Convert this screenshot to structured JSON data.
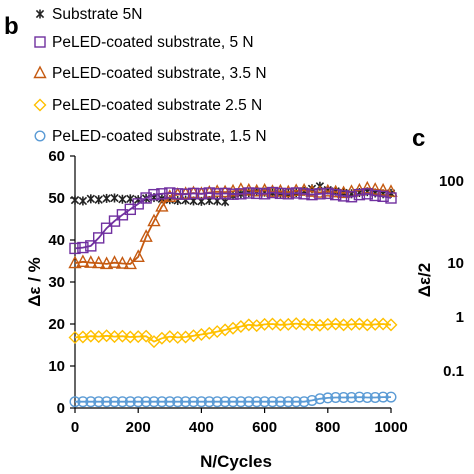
{
  "panel_b_label": "b",
  "panel_c_label": "c",
  "panel_c": {
    "ylabel": "Δε/2",
    "yticks": [
      "100",
      "10",
      "1",
      "0.1"
    ]
  },
  "chart_data": {
    "type": "scatter",
    "xlabel": "N/Cycles",
    "ylabel": "Δε / %",
    "xlim": [
      0,
      1000
    ],
    "ylim": [
      0,
      60
    ],
    "xticks": [
      0,
      200,
      400,
      600,
      800,
      1000
    ],
    "yticks": [
      0,
      10,
      20,
      30,
      40,
      50,
      60
    ],
    "grid": false,
    "legend_position": "top-left",
    "series": [
      {
        "name": "Substrate 5N",
        "marker": "asterisk",
        "color": "#222222",
        "x": [
          0,
          25,
          50,
          75,
          100,
          125,
          150,
          175,
          200,
          225,
          250,
          275,
          300,
          325,
          350,
          375,
          400,
          425,
          450,
          475,
          500,
          525,
          550,
          575,
          600,
          625,
          650,
          675,
          700,
          725,
          750,
          775,
          800,
          825,
          850,
          875,
          900,
          925,
          950,
          975,
          1000
        ],
        "y": [
          49.5,
          49.3,
          49.8,
          49.6,
          49.9,
          50.0,
          49.7,
          49.8,
          49.6,
          49.9,
          50.1,
          49.8,
          49.6,
          49.4,
          49.5,
          49.3,
          49.2,
          49.4,
          49.3,
          49.1,
          50.6,
          51.0,
          51.3,
          51.5,
          51.4,
          51.2,
          51.1,
          51.0,
          51.3,
          51.6,
          52.2,
          52.8,
          51.9,
          51.6,
          51.2,
          51.0,
          51.3,
          51.5,
          51.2,
          51.0,
          51.1
        ]
      },
      {
        "name": "PeLED-coated substrate, 5 N",
        "marker": "square",
        "color": "#7030a0",
        "x": [
          0,
          25,
          50,
          75,
          100,
          125,
          150,
          175,
          200,
          225,
          250,
          275,
          300,
          325,
          350,
          375,
          400,
          425,
          450,
          475,
          500,
          525,
          550,
          575,
          600,
          625,
          650,
          675,
          700,
          725,
          750,
          775,
          800,
          825,
          850,
          875,
          900,
          925,
          950,
          975,
          1000
        ],
        "y": [
          38.0,
          38.2,
          38.6,
          40.5,
          42.8,
          44.5,
          46.0,
          47.3,
          48.6,
          50.0,
          50.8,
          51.0,
          51.2,
          51.0,
          50.9,
          51.1,
          51.0,
          51.2,
          51.0,
          51.1,
          50.9,
          51.0,
          51.2,
          51.1,
          51.0,
          51.3,
          51.1,
          51.0,
          51.2,
          51.0,
          50.8,
          51.0,
          51.1,
          50.8,
          50.5,
          50.3,
          50.8,
          51.0,
          50.6,
          50.4,
          50.0
        ]
      },
      {
        "name": "PeLED-coated substrate, 3.5 N",
        "marker": "triangle",
        "color": "#c55a11",
        "x": [
          0,
          25,
          50,
          75,
          100,
          125,
          150,
          175,
          200,
          225,
          250,
          275,
          300,
          325,
          350,
          375,
          400,
          425,
          450,
          475,
          500,
          525,
          550,
          575,
          600,
          625,
          650,
          675,
          700,
          725,
          750,
          775,
          800,
          825,
          850,
          875,
          900,
          925,
          950,
          975,
          1000
        ],
        "y": [
          34.5,
          34.8,
          34.6,
          34.5,
          34.3,
          34.6,
          34.4,
          34.3,
          36.0,
          40.8,
          44.5,
          48.0,
          50.3,
          50.8,
          51.0,
          51.2,
          51.0,
          51.3,
          51.5,
          51.4,
          51.6,
          52.0,
          51.8,
          51.6,
          51.8,
          51.5,
          51.6,
          51.4,
          51.7,
          51.8,
          51.5,
          51.3,
          51.6,
          51.4,
          51.2,
          51.5,
          51.8,
          52.3,
          52.0,
          51.8,
          51.5
        ]
      },
      {
        "name": "PeLED-coated substrate 2.5 N",
        "marker": "diamond",
        "color": "#ffc000",
        "x": [
          0,
          25,
          50,
          75,
          100,
          125,
          150,
          175,
          200,
          225,
          250,
          275,
          300,
          325,
          350,
          375,
          400,
          425,
          450,
          475,
          500,
          525,
          550,
          575,
          600,
          625,
          650,
          675,
          700,
          725,
          750,
          775,
          800,
          825,
          850,
          875,
          900,
          925,
          950,
          975,
          1000
        ],
        "y": [
          16.8,
          16.9,
          17.1,
          17.0,
          17.2,
          17.0,
          17.1,
          16.9,
          17.0,
          17.1,
          15.8,
          16.6,
          17.0,
          16.8,
          16.9,
          17.2,
          17.5,
          17.8,
          18.2,
          18.6,
          19.0,
          19.4,
          19.8,
          19.6,
          19.9,
          20.0,
          19.8,
          19.9,
          20.1,
          19.9,
          19.8,
          19.7,
          19.9,
          20.0,
          19.8,
          19.9,
          20.0,
          19.8,
          19.9,
          20.0,
          19.8
        ]
      },
      {
        "name": "PeLED-coated substrate, 1.5 N",
        "marker": "circle",
        "color": "#5b9bd5",
        "x": [
          0,
          25,
          50,
          75,
          100,
          125,
          150,
          175,
          200,
          225,
          250,
          275,
          300,
          325,
          350,
          375,
          400,
          425,
          450,
          475,
          500,
          525,
          550,
          575,
          600,
          625,
          650,
          675,
          700,
          725,
          750,
          775,
          800,
          825,
          850,
          875,
          900,
          925,
          950,
          975,
          1000
        ],
        "y": [
          1.5,
          1.5,
          1.5,
          1.5,
          1.5,
          1.5,
          1.5,
          1.5,
          1.5,
          1.5,
          1.5,
          1.5,
          1.5,
          1.5,
          1.5,
          1.5,
          1.5,
          1.5,
          1.5,
          1.5,
          1.5,
          1.5,
          1.5,
          1.5,
          1.5,
          1.5,
          1.5,
          1.5,
          1.5,
          1.5,
          1.8,
          2.2,
          2.4,
          2.5,
          2.5,
          2.5,
          2.6,
          2.5,
          2.5,
          2.6,
          2.6
        ]
      }
    ]
  }
}
